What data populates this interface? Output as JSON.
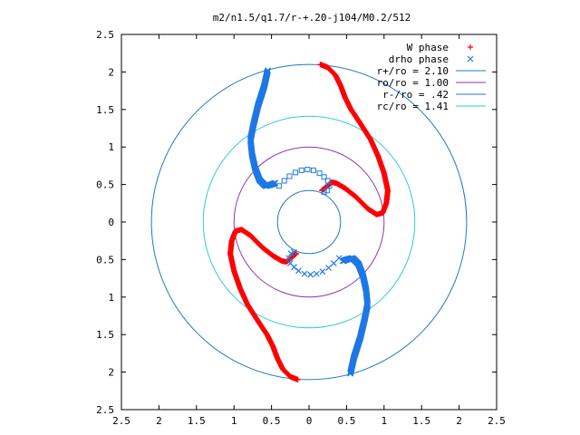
{
  "chart_data": {
    "type": "scatter",
    "title": "m2/n1.5/q1.7/r-+.20-j104/M0.2/512",
    "xlabel": "",
    "ylabel": "",
    "xlim": [
      -2.5,
      2.5
    ],
    "ylim": [
      -2.5,
      2.5
    ],
    "x_ticks": [
      -2.5,
      -2,
      -1.5,
      -1,
      -0.5,
      0,
      0.5,
      1,
      1.5,
      2,
      2.5
    ],
    "y_ticks": [
      -2.5,
      -2,
      -1.5,
      -1,
      -0.5,
      0,
      0.5,
      1,
      1.5,
      2,
      2.5
    ],
    "tick_labels": [
      "2.5",
      "2",
      "1.5",
      "1",
      "0.5",
      "0",
      "0.5",
      "1",
      "1.5",
      "2",
      "2.5"
    ],
    "grid": false,
    "legend_position": "top-right",
    "series": [
      {
        "name": "W phase",
        "kind": "points",
        "marker": "plus",
        "color": "#ff0000",
        "arms": [
          [
            [
              0.15,
              2.1
            ],
            [
              0.25,
              2.06
            ],
            [
              0.35,
              1.96
            ],
            [
              0.42,
              1.82
            ],
            [
              0.48,
              1.66
            ],
            [
              0.56,
              1.5
            ],
            [
              0.68,
              1.32
            ],
            [
              0.82,
              1.1
            ],
            [
              0.92,
              0.88
            ],
            [
              1.0,
              0.65
            ],
            [
              1.05,
              0.42
            ],
            [
              1.03,
              0.25
            ],
            [
              0.98,
              0.12
            ],
            [
              0.9,
              0.1
            ],
            [
              0.78,
              0.18
            ],
            [
              0.62,
              0.34
            ],
            [
              0.48,
              0.45
            ],
            [
              0.36,
              0.52
            ],
            [
              0.3,
              0.53
            ],
            [
              0.22,
              0.46
            ],
            [
              0.17,
              0.42
            ]
          ],
          [
            [
              -0.15,
              -2.1
            ],
            [
              -0.25,
              -2.06
            ],
            [
              -0.35,
              -1.96
            ],
            [
              -0.42,
              -1.82
            ],
            [
              -0.48,
              -1.66
            ],
            [
              -0.56,
              -1.5
            ],
            [
              -0.68,
              -1.32
            ],
            [
              -0.82,
              -1.1
            ],
            [
              -0.92,
              -0.88
            ],
            [
              -1.0,
              -0.65
            ],
            [
              -1.05,
              -0.42
            ],
            [
              -1.03,
              -0.25
            ],
            [
              -0.98,
              -0.12
            ],
            [
              -0.9,
              -0.1
            ],
            [
              -0.78,
              -0.18
            ],
            [
              -0.62,
              -0.34
            ],
            [
              -0.48,
              -0.45
            ],
            [
              -0.36,
              -0.52
            ],
            [
              -0.3,
              -0.53
            ],
            [
              -0.22,
              -0.46
            ],
            [
              -0.17,
              -0.42
            ]
          ]
        ]
      },
      {
        "name": "drho phase",
        "kind": "points",
        "marker": "cross",
        "color": "#1e78e6",
        "arms": [
          [
            [
              -0.55,
              2.02
            ],
            [
              -0.6,
              1.8
            ],
            [
              -0.68,
              1.55
            ],
            [
              -0.74,
              1.3
            ],
            [
              -0.78,
              1.1
            ],
            [
              -0.76,
              0.9
            ],
            [
              -0.72,
              0.72
            ],
            [
              -0.66,
              0.56
            ],
            [
              -0.58,
              0.48
            ],
            [
              -0.5,
              0.5
            ],
            [
              -0.45,
              0.52
            ]
          ],
          [
            [
              0.55,
              -2.02
            ],
            [
              0.6,
              -1.8
            ],
            [
              0.68,
              -1.55
            ],
            [
              0.74,
              -1.3
            ],
            [
              0.78,
              -1.1
            ],
            [
              0.76,
              -0.9
            ],
            [
              0.72,
              -0.72
            ],
            [
              0.66,
              -0.56
            ],
            [
              0.58,
              -0.48
            ],
            [
              0.5,
              -0.5
            ],
            [
              0.45,
              -0.52
            ]
          ]
        ]
      },
      {
        "name": "drho phase",
        "kind": "points",
        "marker": "square",
        "color": "#1e78e6",
        "points": [
          [
            -0.4,
            0.48
          ],
          [
            -0.33,
            0.55
          ],
          [
            -0.26,
            0.61
          ],
          [
            -0.18,
            0.66
          ],
          [
            -0.1,
            0.69
          ],
          [
            -0.02,
            0.7
          ],
          [
            0.06,
            0.69
          ],
          [
            0.14,
            0.65
          ],
          [
            0.2,
            0.6
          ],
          [
            0.25,
            0.55
          ],
          [
            0.27,
            0.48
          ],
          [
            0.24,
            0.42
          ],
          [
            0.2,
            0.4
          ]
        ]
      },
      {
        "name": "drho phase",
        "kind": "points",
        "marker": "cross",
        "color": "#1e78e6",
        "points": [
          [
            0.4,
            -0.48
          ],
          [
            0.33,
            -0.55
          ],
          [
            0.26,
            -0.61
          ],
          [
            0.18,
            -0.66
          ],
          [
            0.1,
            -0.69
          ],
          [
            0.02,
            -0.7
          ],
          [
            -0.06,
            -0.69
          ],
          [
            -0.14,
            -0.65
          ],
          [
            -0.2,
            -0.6
          ],
          [
            -0.25,
            -0.55
          ],
          [
            -0.27,
            -0.48
          ],
          [
            -0.24,
            -0.42
          ],
          [
            -0.2,
            -0.4
          ]
        ]
      },
      {
        "name": "r+/ro = 2.10",
        "kind": "circle",
        "radius": 2.1,
        "color": "#1e78c8"
      },
      {
        "name": "ro/ro = 1.00",
        "kind": "circle",
        "radius": 1.0,
        "color": "#9632b4"
      },
      {
        "name": "r-/ro = .42",
        "kind": "circle",
        "radius": 0.42,
        "color": "#1e78c8"
      },
      {
        "name": "rc/ro = 1.41",
        "kind": "circle",
        "radius": 1.41,
        "color": "#32c8dc"
      }
    ]
  }
}
